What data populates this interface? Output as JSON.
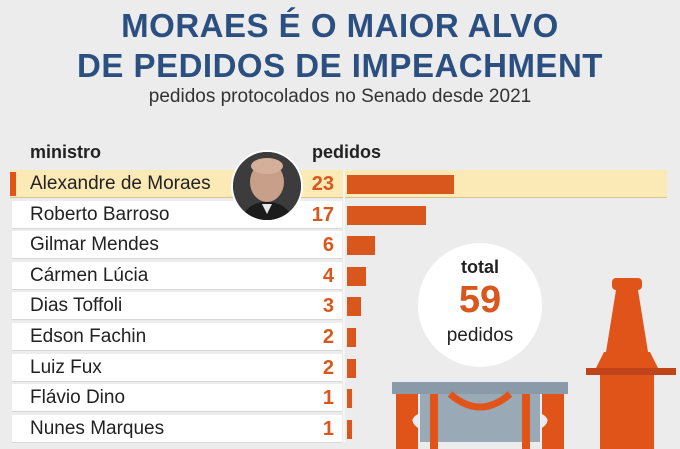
{
  "header": {
    "title_line1": "MORAES É O MAIOR ALVO",
    "title_line2": "DE PEDIDOS DE IMPEACHMENT",
    "subtitle": "pedidos protocolados no Senado desde 2021"
  },
  "columns": {
    "minister": "ministro",
    "requests": "pedidos"
  },
  "total": {
    "label": "total",
    "value": "59",
    "unit": "pedidos"
  },
  "colors": {
    "accent": "#d9571c",
    "title": "#2a4f80",
    "highlight": "#fbe9b6"
  },
  "chart_data": {
    "type": "bar",
    "orientation": "horizontal",
    "categories": [
      "Alexandre de Moraes",
      "Roberto Barroso",
      "Gilmar Mendes",
      "Cármen Lúcia",
      "Dias Toffoli",
      "Edson Fachin",
      "Luiz Fux",
      "Flávio Dino",
      "Nunes Marques"
    ],
    "values": [
      23,
      17,
      6,
      4,
      3,
      2,
      2,
      1,
      1
    ],
    "title": "MORAES É O MAIOR ALVO DE PEDIDOS DE IMPEACHMENT",
    "subtitle": "pedidos protocolados no Senado desde 2021",
    "highlighted_category": "Alexandre de Moraes",
    "grid": false,
    "legend": "none"
  }
}
